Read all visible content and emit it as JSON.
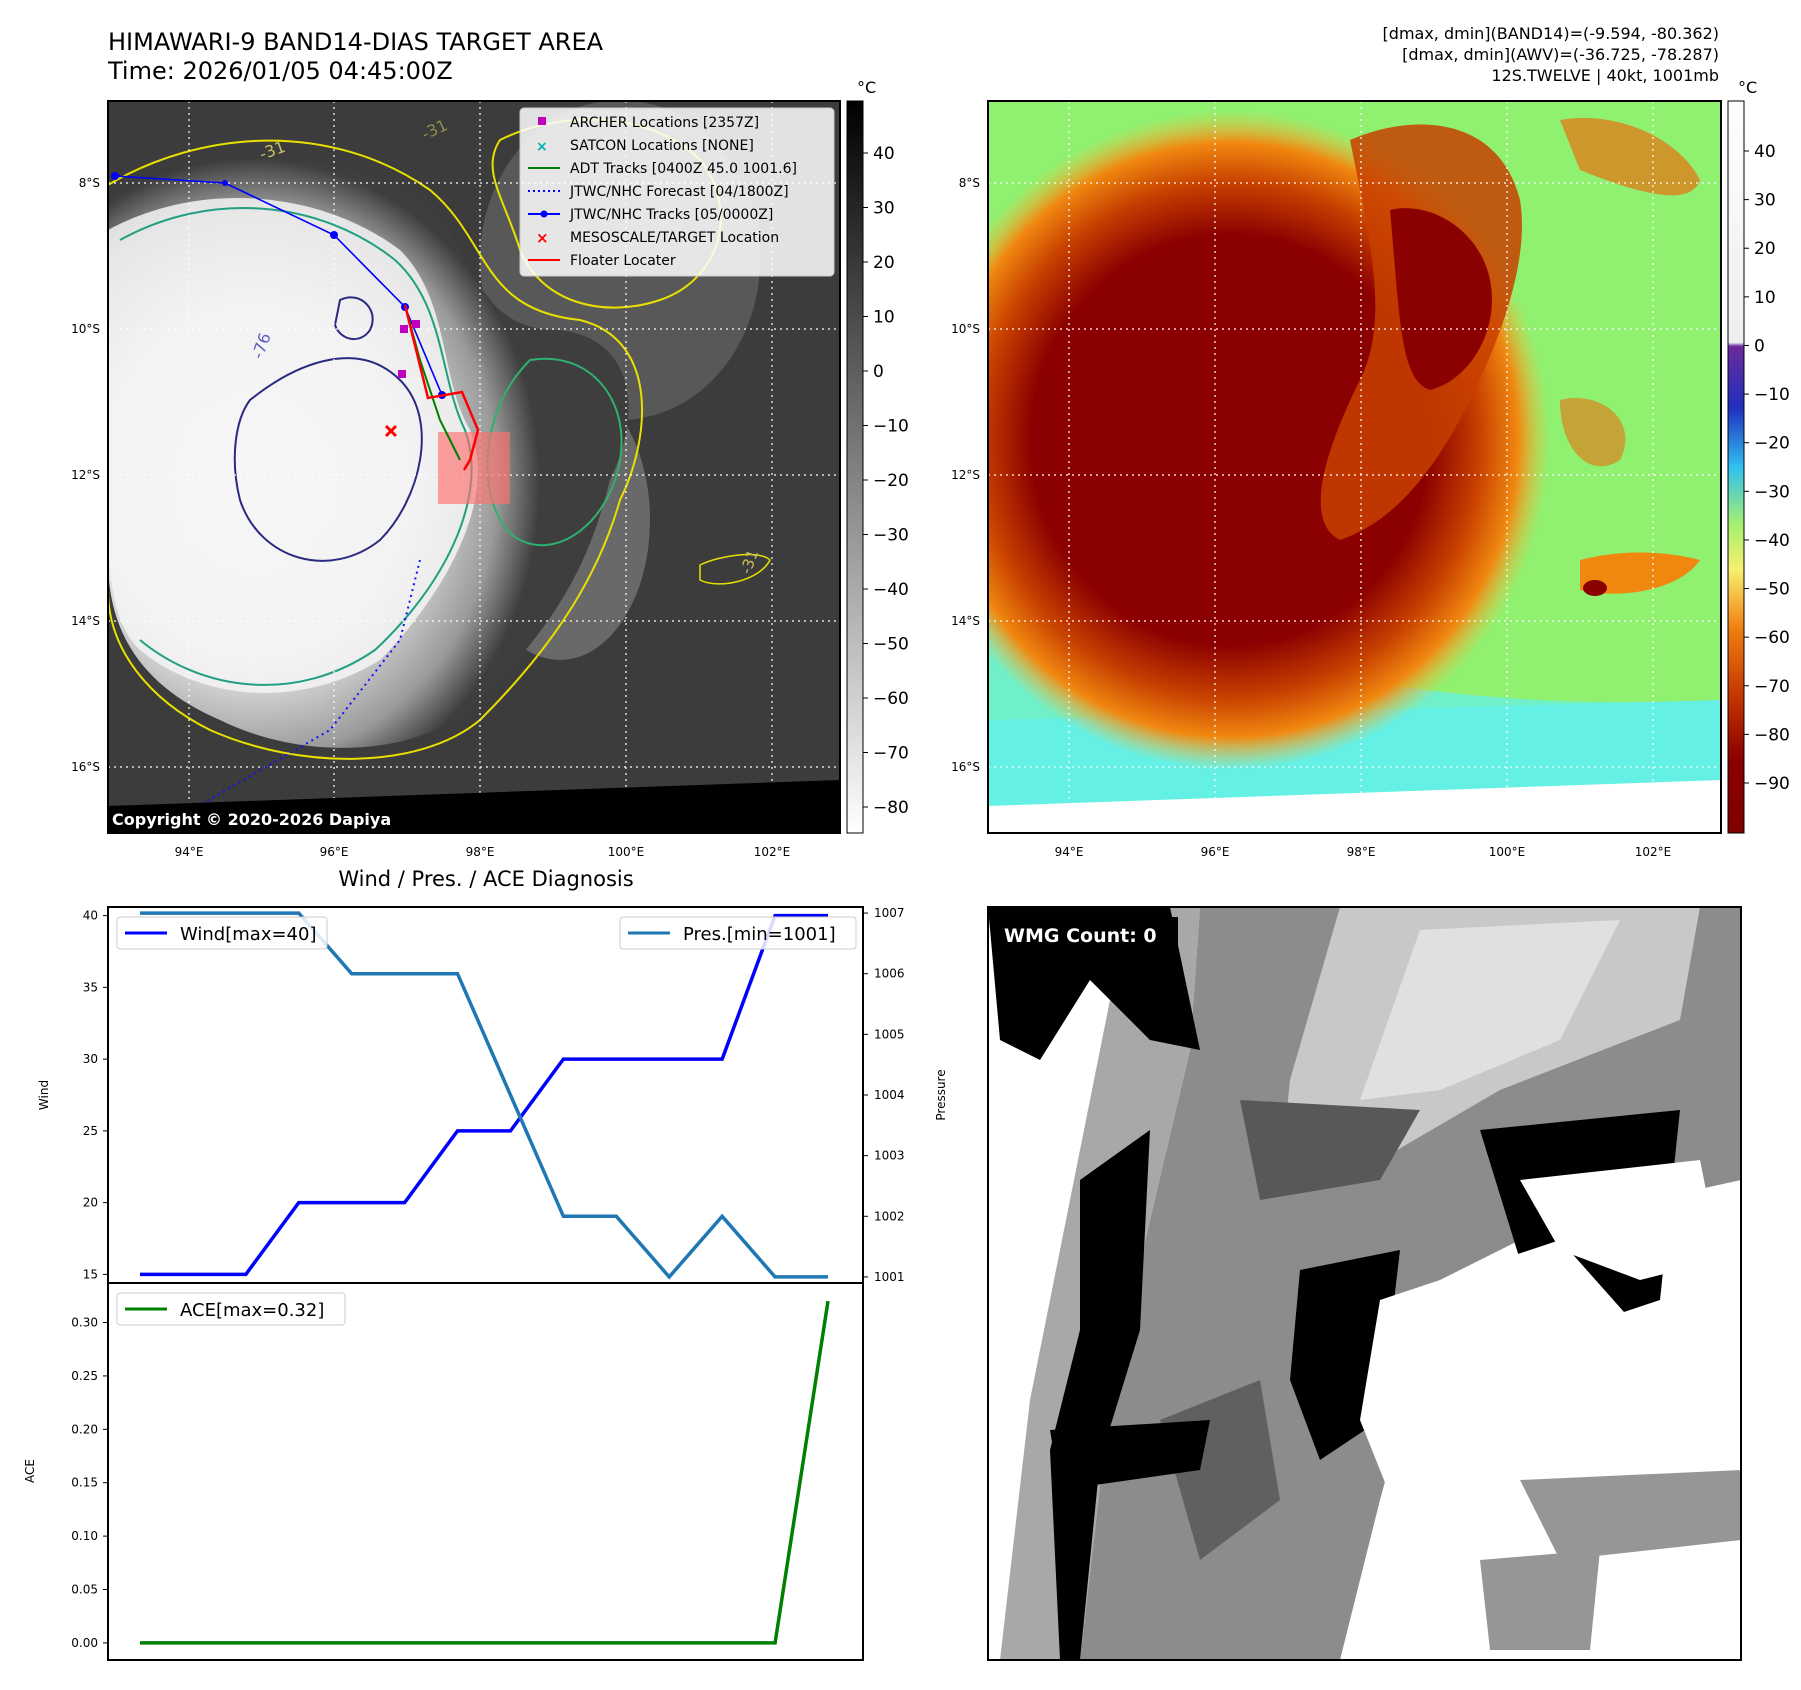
{
  "header": {
    "title_line1": "HIMAWARI-9 BAND14-DIAS TARGET AREA",
    "title_line2": "Time: 2026/01/05 04:45:00Z",
    "stats_line1": "[dmax, dmin](BAND14)=(-9.594, -80.362)",
    "stats_line2": "[dmax, dmin](AWV)=(-36.725, -78.287)",
    "stats_line3": "12S.TWELVE | 40kt, 1001mb"
  },
  "map_ir": {
    "lon_ticks": [
      "94°E",
      "96°E",
      "98°E",
      "100°E",
      "102°E"
    ],
    "lat_ticks": [
      "8°S",
      "10°S",
      "12°S",
      "14°S",
      "16°S"
    ],
    "colorbar_unit": "°C",
    "colorbar_ticks": [
      "40",
      "30",
      "20",
      "10",
      "0",
      "−10",
      "−20",
      "−30",
      "−40",
      "−50",
      "−60",
      "−70",
      "−80"
    ],
    "copyright": "Copyright © 2020-2026 Dapiya",
    "contour_labels": [
      "-31",
      "-76",
      "-31",
      "-31"
    ],
    "legend": [
      {
        "label": "ARCHER Locations [2357Z]",
        "color": "#c000c0"
      },
      {
        "label": "SATCON Locations [NONE]",
        "color": "#00b0b0"
      },
      {
        "label": "ADT Tracks [0400Z 45.0 1001.6]",
        "color": "#008000"
      },
      {
        "label": "JTWC/NHC Forecast [04/1800Z]",
        "color": "#0000ff"
      },
      {
        "label": "JTWC/NHC Tracks [05/0000Z]",
        "color": "#0000ff"
      },
      {
        "label": "MESOSCALE/TARGET Location",
        "color": "#ff0000"
      },
      {
        "label": "Floater Locater",
        "color": "#ff0000"
      }
    ]
  },
  "map_awv": {
    "lon_ticks": [
      "94°E",
      "96°E",
      "98°E",
      "100°E",
      "102°E"
    ],
    "lat_ticks": [
      "8°S",
      "10°S",
      "12°S",
      "14°S",
      "16°S"
    ],
    "colorbar_unit": "°C",
    "colorbar_ticks": [
      "40",
      "30",
      "20",
      "10",
      "0",
      "−10",
      "−20",
      "−30",
      "−40",
      "−50",
      "−60",
      "−70",
      "−80",
      "−90"
    ]
  },
  "wmg": {
    "label": "WMG Count: 0"
  },
  "chart_data": [
    {
      "type": "line",
      "title": "Wind / Pres. / ACE Diagnosis",
      "ylabel": "Wind",
      "y2label": "Pressure",
      "ylim": [
        14.4,
        40.6
      ],
      "y2lim": [
        1000.9,
        1007.1
      ],
      "yticks": [
        "15",
        "20",
        "25",
        "30",
        "35",
        "40"
      ],
      "y2ticks": [
        "1001",
        "1002",
        "1003",
        "1004",
        "1005",
        "1006",
        "1007"
      ],
      "x": [
        0,
        1,
        2,
        3,
        4,
        5,
        6,
        7,
        8,
        9,
        10,
        11,
        12,
        13
      ],
      "series": [
        {
          "name": "Wind[max=40]",
          "axis": "left",
          "color": "#0000ff",
          "values": [
            15,
            15,
            15,
            20,
            20,
            20,
            25,
            25,
            30,
            30,
            30,
            30,
            40,
            40
          ]
        },
        {
          "name": "Pres.[min=1001]",
          "axis": "right",
          "color": "#1f77b4",
          "values": [
            1007,
            1007,
            1007,
            1007,
            1006,
            1006,
            1006,
            1004,
            1002,
            1002,
            1001,
            1002,
            1001,
            1001
          ]
        }
      ]
    },
    {
      "type": "line",
      "title": "",
      "ylabel": "ACE",
      "ylim": [
        -0.016,
        0.337
      ],
      "yticks": [
        "0.00",
        "0.05",
        "0.10",
        "0.15",
        "0.20",
        "0.25",
        "0.30"
      ],
      "x": [
        0,
        1,
        2,
        3,
        4,
        5,
        6,
        7,
        8,
        9,
        10,
        11,
        12,
        13
      ],
      "series": [
        {
          "name": "ACE[max=0.32]",
          "color": "#008000",
          "values": [
            0,
            0,
            0,
            0,
            0,
            0,
            0,
            0,
            0,
            0,
            0,
            0,
            0,
            0.32
          ]
        }
      ]
    }
  ]
}
